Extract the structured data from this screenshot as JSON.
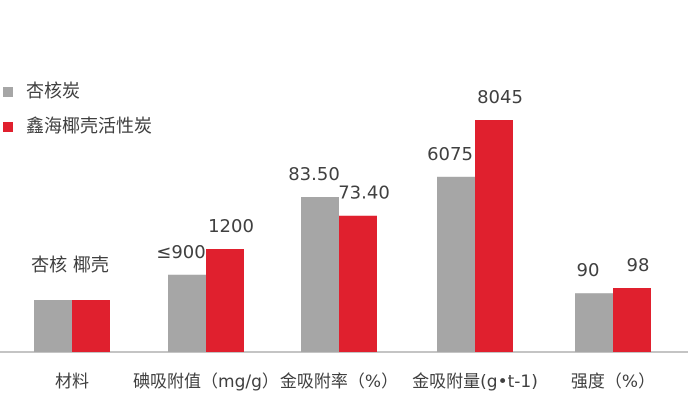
{
  "chart_data": {
    "type": "bar",
    "categories": [
      "材料",
      "碘吸附值（mg/g）",
      "金吸附率（%）",
      "金吸附量(g•t-1)",
      "强度（%）"
    ],
    "annotation": "杏核 椰壳",
    "series": [
      {
        "name": "杏核炭",
        "color": "#a6a6a6",
        "values": [
          null,
          900,
          83.5,
          6075,
          90
        ],
        "value_labels": [
          null,
          "≤900",
          "83.50",
          "6075",
          "90"
        ]
      },
      {
        "name": "鑫海椰壳活性炭",
        "color": "#e0202e",
        "values": [
          null,
          1200,
          73.4,
          8045,
          98
        ],
        "value_labels": [
          null,
          "1200",
          "73.40",
          "8045",
          "98"
        ]
      }
    ],
    "legend": "top-left"
  }
}
